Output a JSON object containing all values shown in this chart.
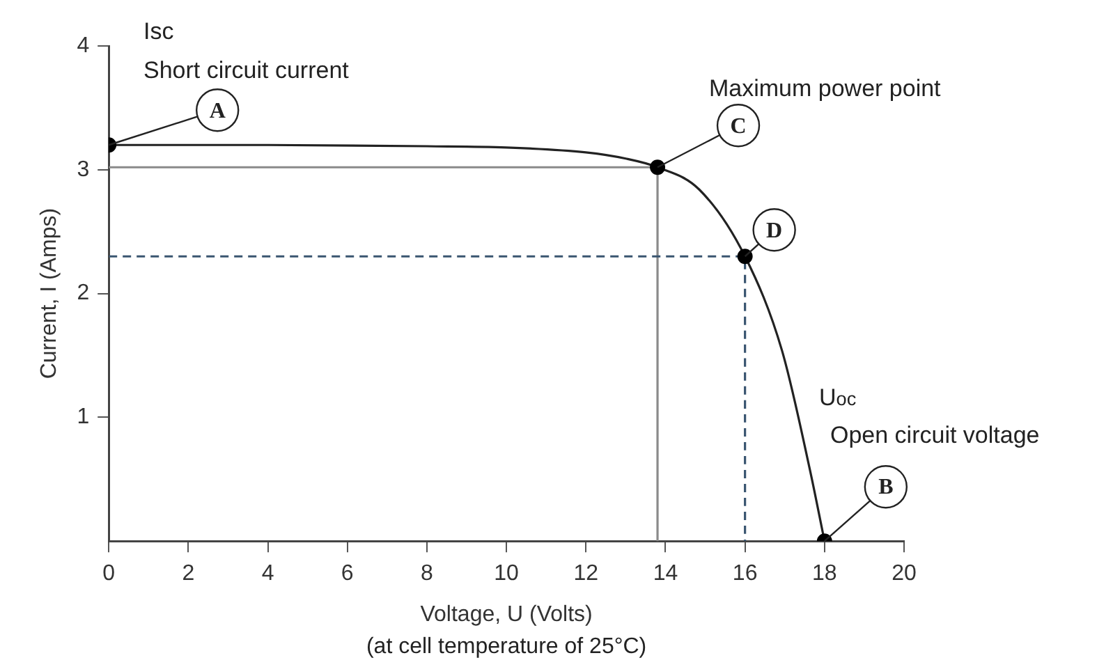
{
  "chart_data": {
    "type": "line",
    "xlabel": "Voltage, U (Volts)",
    "ylabel": "Current, I (Amps)",
    "xlim": [
      0,
      20
    ],
    "xticks": [
      0,
      2,
      4,
      6,
      8,
      10,
      12,
      14,
      16,
      18,
      20
    ],
    "ylim": [
      0,
      4
    ],
    "yticks": [
      1,
      2,
      3,
      4
    ],
    "grid": false,
    "legend": false,
    "series": [
      {
        "color": "#222222",
        "marker": "none",
        "line_style": "solid",
        "x": [
          0,
          4,
          8,
          10,
          12,
          13,
          13.8,
          14.85,
          16,
          16.93,
          17.63,
          18
        ],
        "values": [
          3.2,
          3.2,
          3.19,
          3.18,
          3.14,
          3.09,
          3.02,
          2.84,
          2.3,
          1.54,
          0.58,
          0
        ]
      },
      {
        "type": "line",
        "color": "#8a8a8a",
        "marker": "none",
        "line_style": "solid",
        "x": [
          0,
          13.8,
          13.8
        ],
        "values": [
          3.02,
          3.02,
          0
        ]
      },
      {
        "type": "line",
        "color": "#3a5570",
        "marker": "none",
        "line_style": "dashed",
        "x": [
          0,
          16,
          16
        ],
        "values": [
          2.3,
          2.3,
          0
        ]
      },
      {
        "type": "scatter",
        "color": "#000000",
        "marker": "circle",
        "x": [
          0,
          13.8,
          16,
          18
        ],
        "values": [
          3.2,
          3.02,
          2.3,
          0
        ]
      }
    ],
    "annotations": [
      {
        "text": "A",
        "x": 0,
        "y": 3.2
      },
      {
        "text": "B",
        "x": 18,
        "y": 0
      },
      {
        "text": "C",
        "x": 13.8,
        "y": 3.02
      },
      {
        "text": "D",
        "x": 16,
        "y": 2.3
      },
      "Isc",
      "Short circuit current",
      "Maximum power point",
      "U$_{oc}$",
      "Open circuit voltage",
      "(at cell temperature of 25°C)"
    ]
  }
}
